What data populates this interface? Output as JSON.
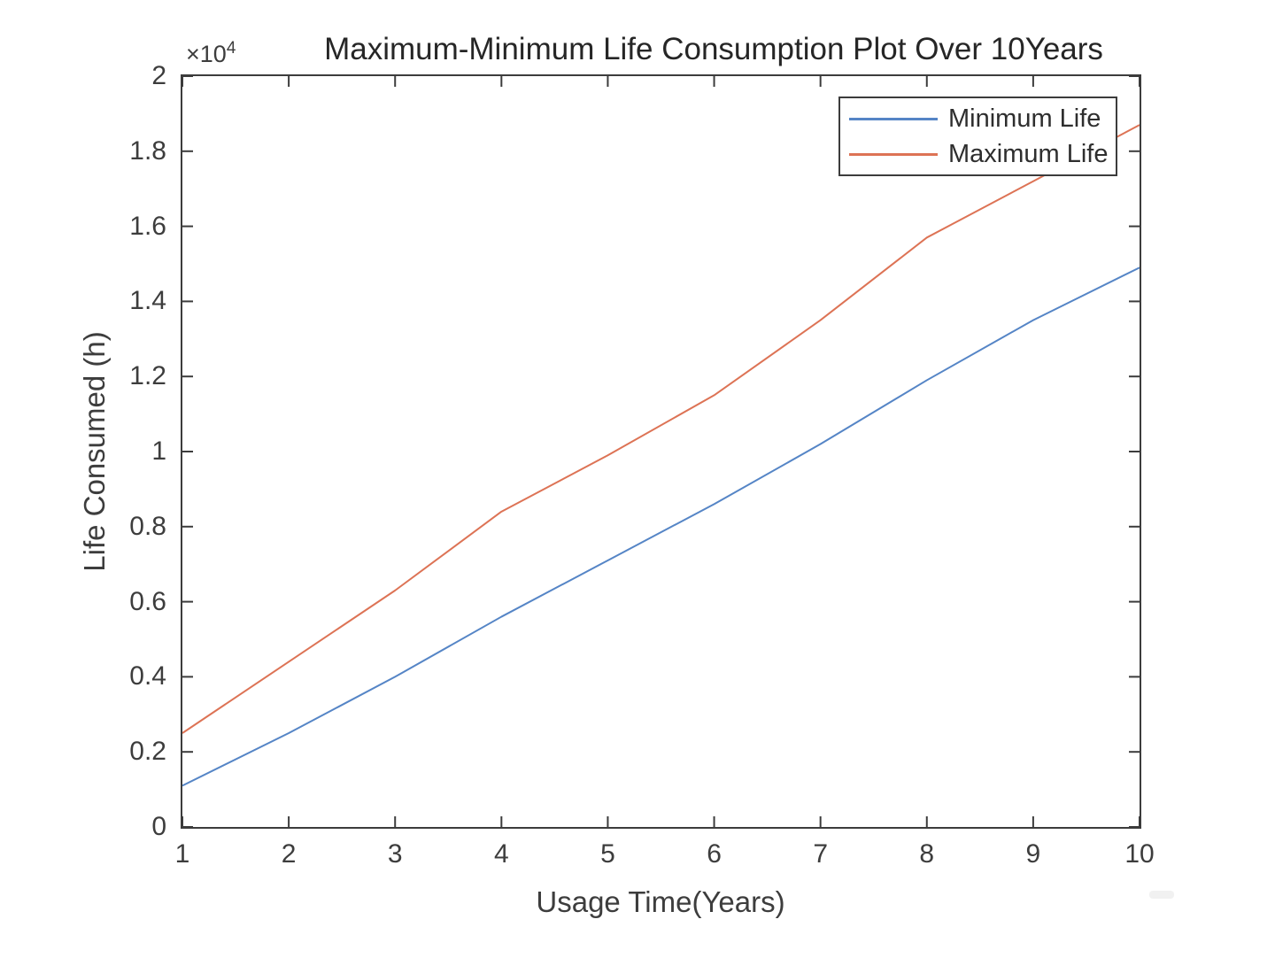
{
  "figure": {
    "background_color": "#ffffff",
    "axis_color": "#3c3c3c",
    "tick_text_color": "#3d3d3d",
    "title_color": "#262626"
  },
  "chart_data": {
    "type": "line",
    "title": "Maximum-Minimum Life Consumption Plot Over 10Years",
    "xlabel": "Usage Time(Years)",
    "ylabel": "Life Consumed (h)",
    "y_axis_multiplier_base": "×10",
    "y_axis_multiplier_exponent": "4",
    "x": [
      1,
      2,
      3,
      4,
      5,
      6,
      7,
      8,
      9,
      10
    ],
    "xlim": [
      1,
      10
    ],
    "ylim": [
      0,
      20000
    ],
    "x_tick_labels": [
      "1",
      "2",
      "3",
      "4",
      "5",
      "6",
      "7",
      "8",
      "9",
      "10"
    ],
    "y_tick_values": [
      0,
      2000,
      4000,
      6000,
      8000,
      10000,
      12000,
      14000,
      16000,
      18000,
      20000
    ],
    "y_tick_labels": [
      "0",
      "0.2",
      "0.4",
      "0.6",
      "0.8",
      "1",
      "1.2",
      "1.4",
      "1.6",
      "1.8",
      "2"
    ],
    "grid": false,
    "legend_position": "top-right",
    "series": [
      {
        "name": "Minimum Life",
        "color": "#5585c6",
        "values": [
          1100,
          2500,
          4000,
          5600,
          7100,
          8600,
          10200,
          11900,
          13500,
          14900
        ]
      },
      {
        "name": "Maximum Life",
        "color": "#dd7355",
        "values": [
          2500,
          4400,
          6300,
          8400,
          9900,
          11500,
          13500,
          15700,
          17200,
          18700
        ]
      }
    ]
  }
}
